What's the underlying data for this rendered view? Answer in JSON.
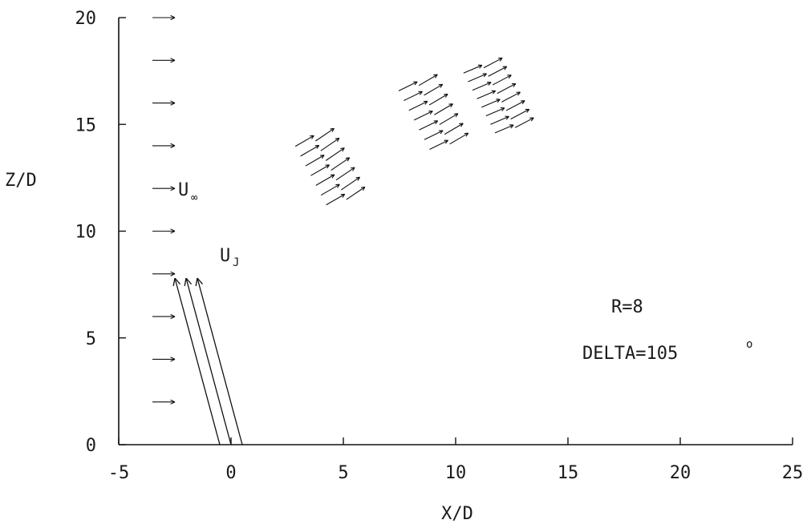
{
  "chart_data": {
    "type": "scatter",
    "xlabel": "X/D",
    "ylabel": "Z/D",
    "xlim": [
      -5,
      25
    ],
    "ylim": [
      0,
      20
    ],
    "xticks": [
      "-5",
      "0",
      "5",
      "10",
      "15",
      "20",
      "25"
    ],
    "yticks": [
      "0",
      "5",
      "10",
      "15",
      "20"
    ],
    "grid": false,
    "annotations": {
      "freestream_label": "U",
      "freestream_sub": "∞",
      "jet_label": "U",
      "jet_sub": "J",
      "ratio": "R=8",
      "delta": "DELTA=105",
      "delta_unit": "o"
    },
    "freestream_vectors": {
      "x": -3.5,
      "z": [
        2,
        4,
        6,
        8,
        10,
        12,
        14,
        16,
        18,
        20
      ],
      "dx": 1.0,
      "dz": 0.0
    },
    "jet_vectors": [
      {
        "x0": -0.5,
        "z0": 0,
        "x1": -2.5,
        "z1": 7.8
      },
      {
        "x0": 0.0,
        "z0": 0,
        "x1": -2.0,
        "z1": 7.8
      },
      {
        "x0": 0.5,
        "z0": 0,
        "x1": -1.5,
        "z1": 7.8
      }
    ],
    "measurement_stations": [
      {
        "x": 4.0,
        "z": 12.6,
        "points": 14,
        "slope": 0.38
      },
      {
        "x": 8.6,
        "z": 15.2,
        "points": 14,
        "slope": 0.32
      },
      {
        "x": 11.5,
        "z": 16.0,
        "points": 16,
        "slope": 0.28
      }
    ]
  }
}
